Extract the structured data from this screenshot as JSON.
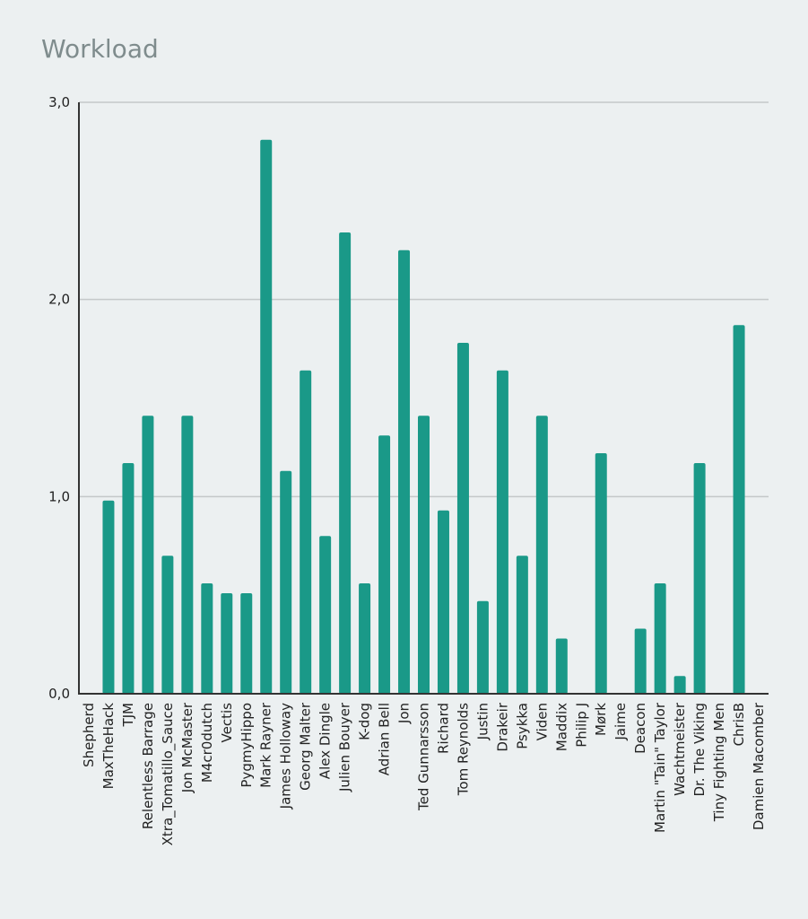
{
  "chart_data": {
    "type": "bar",
    "title": "Workload",
    "xlabel": "",
    "ylabel": "",
    "ylim": [
      0,
      3
    ],
    "yticks": [
      0,
      1,
      2,
      3
    ],
    "ytick_labels": [
      "0,0",
      "1,0",
      "2,0",
      "3,0"
    ],
    "grid": true,
    "legend": "none",
    "bar_color": "#1a9988",
    "categories": [
      "Shepherd",
      "MaxTheHack",
      "TJM",
      "Relentless Barrage",
      "Xtra_Tomatillo_Sauce",
      "Jon McMaster",
      "M4cr0dutch",
      "Vectis",
      "PygmyHippo",
      "Mark Rayner",
      "James Holloway",
      "Georg Malter",
      "Alex Dingle",
      "Julien Bouyer",
      "K-dog",
      "Adrian Bell",
      "Jon",
      "Ted Gunnarsson",
      "Richard",
      "Tom Reynolds",
      "Justin",
      "Drakeir",
      "Psykka",
      "Viden",
      "Maddix",
      "Philip J",
      "Mørk",
      "Jaime",
      "Deacon",
      "Martin \"Tain\" Taylor",
      "Wachtmeister",
      "Dr. The Viking",
      "Tiny Fighting Men",
      "ChrisB",
      "Damien Macomber"
    ],
    "values": [
      0,
      0.98,
      1.17,
      1.41,
      0.7,
      1.41,
      0.56,
      0.51,
      0.51,
      2.81,
      1.13,
      1.64,
      0.8,
      2.34,
      0.56,
      1.31,
      2.25,
      1.41,
      0.93,
      1.78,
      0.47,
      1.64,
      0.7,
      1.41,
      0.28,
      0,
      1.22,
      0,
      0.33,
      0.56,
      0.09,
      1.17,
      0,
      1.87,
      0
    ]
  }
}
